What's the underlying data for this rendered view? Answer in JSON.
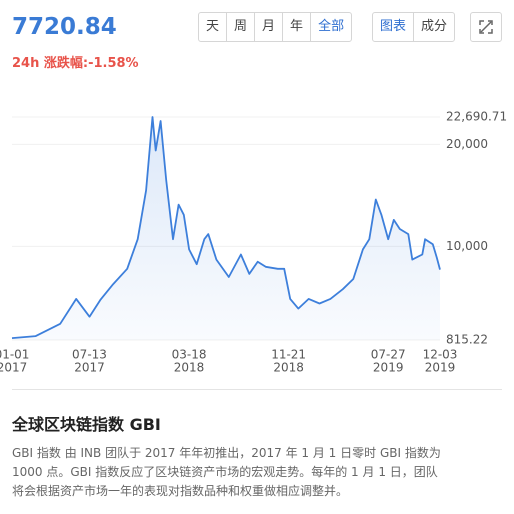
{
  "header": {
    "price": "7720.84",
    "change": "24h 涨跌幅:-1.58%"
  },
  "buttons": {
    "range": [
      "天",
      "周",
      "月",
      "年",
      "全部"
    ],
    "view": [
      "图表",
      "成分"
    ]
  },
  "chart_data": {
    "type": "line",
    "color": "#3d7fdb",
    "x": [
      "2017-01-01",
      "2017-03-01",
      "2017-05-01",
      "2017-06-10",
      "2017-07-13",
      "2017-08-10",
      "2017-09-10",
      "2017-10-15",
      "2017-11-10",
      "2017-12-01",
      "2017-12-17",
      "2017-12-25",
      "2018-01-06",
      "2018-01-20",
      "2018-02-06",
      "2018-02-20",
      "2018-03-05",
      "2018-03-18",
      "2018-04-06",
      "2018-04-25",
      "2018-05-05",
      "2018-05-25",
      "2018-06-25",
      "2018-07-25",
      "2018-08-15",
      "2018-09-05",
      "2018-09-25",
      "2018-10-25",
      "2018-11-10",
      "2018-11-25",
      "2018-12-15",
      "2019-01-10",
      "2019-02-06",
      "2019-03-05",
      "2019-04-05",
      "2019-05-01",
      "2019-05-25",
      "2019-06-10",
      "2019-06-26",
      "2019-07-10",
      "2019-07-27",
      "2019-08-10",
      "2019-08-25",
      "2019-09-15",
      "2019-09-25",
      "2019-10-20",
      "2019-10-27",
      "2019-11-15",
      "2019-11-25",
      "2019-12-03"
    ],
    "values": [
      1000,
      1200,
      2400,
      4850,
      3100,
      4800,
      6300,
      7800,
      10700,
      15500,
      22690.71,
      19400,
      22300,
      16500,
      10700,
      14100,
      13100,
      9700,
      8250,
      10700,
      11200,
      8700,
      7000,
      9200,
      7300,
      8500,
      8000,
      7800,
      7800,
      4850,
      3900,
      4850,
      4400,
      4850,
      5800,
      6800,
      9700,
      10700,
      14600,
      13100,
      10700,
      12600,
      11700,
      11200,
      8700,
      9200,
      10700,
      10200,
      8900,
      7720.84
    ],
    "xlim": [
      "2017-01-01",
      "2019-12-03"
    ],
    "xticks": [
      {
        "value": "2017-01-01",
        "label": "01-01",
        "year": "2017"
      },
      {
        "value": "2017-07-13",
        "label": "07-13",
        "year": "2017"
      },
      {
        "value": "2018-03-18",
        "label": "03-18",
        "year": "2018"
      },
      {
        "value": "2018-11-21",
        "label": "11-21",
        "year": "2018"
      },
      {
        "value": "2019-07-27",
        "label": "07-27",
        "year": "2019"
      },
      {
        "value": "2019-12-03",
        "label": "12-03",
        "year": "2019"
      }
    ],
    "ylim": [
      815.22,
      22690.71
    ],
    "yticks": [
      815.22,
      {
        "value": 10000,
        "label": "10,000"
      },
      {
        "value": 20000,
        "label": "20,000"
      },
      {
        "value": 22690.71,
        "label": "22,690.71"
      }
    ],
    "grid": true
  },
  "section": {
    "title": "全球区块链指数 GBI",
    "lines": [
      "GBI 指数 由 INB 团队于 2017 年年初推出，2017 年 1 月 1 日零时 GBI 指数为",
      "1000 点。GBI 指数反应了区块链资产市场的宏观走势。每年的 1 月 1 日，团队",
      "将会根据资产市场一年的表现对指数品种和权重做相应调整并。"
    ]
  }
}
